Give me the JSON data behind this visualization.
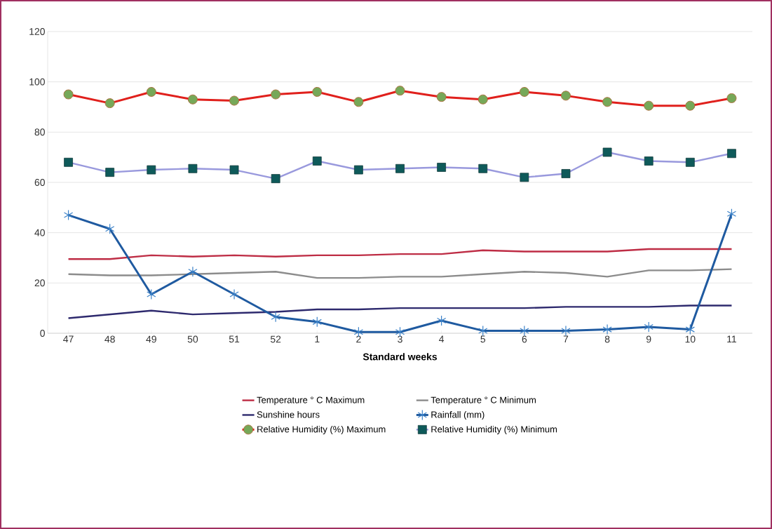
{
  "chart_data": {
    "type": "line",
    "xlabel": "Standard weeks",
    "categories": [
      "47",
      "48",
      "49",
      "50",
      "51",
      "52",
      "1",
      "2",
      "3",
      "4",
      "5",
      "6",
      "7",
      "8",
      "9",
      "10",
      "11"
    ],
    "ylim": [
      0,
      120
    ],
    "yticks": [
      0,
      20,
      40,
      60,
      80,
      100,
      120
    ],
    "grid": "y",
    "legend": "bottom",
    "series": [
      {
        "name": "Temperature ° C Maximum",
        "color": "#be2d45",
        "marker": "none",
        "values": [
          29.5,
          29.5,
          31,
          30.5,
          31,
          30.5,
          31,
          31,
          31.5,
          31.5,
          33,
          32.5,
          32.5,
          32.5,
          33.5,
          33.5,
          33.5
        ]
      },
      {
        "name": "Temperature ° C Minimum",
        "color": "#8c8c8c",
        "marker": "none",
        "values": [
          23.5,
          23,
          23,
          23.5,
          24,
          24.5,
          22,
          22,
          22.5,
          22.5,
          23.5,
          24.5,
          24,
          22.5,
          25,
          25,
          25.5
        ]
      },
      {
        "name": "Sunshine hours",
        "color": "#2e2a6e",
        "marker": "none",
        "values": [
          6,
          7.5,
          9,
          7.5,
          8,
          8.5,
          9.5,
          9.5,
          10,
          10,
          10,
          10,
          10.5,
          10.5,
          10.5,
          11,
          11
        ]
      },
      {
        "name": "Rainfall (mm)",
        "color": "#1f5aa0",
        "marker": "cross",
        "values": [
          47,
          41.5,
          15.5,
          24.5,
          15.5,
          6.5,
          4.5,
          0.5,
          0.5,
          5,
          1,
          1,
          1,
          1.5,
          2.5,
          1.5,
          47.5
        ]
      },
      {
        "name": "Relative Humidity (%) Maximum",
        "color": "#e0201c",
        "marker": "circle",
        "values": [
          95,
          91.5,
          96,
          93,
          92.5,
          95,
          96,
          92,
          96.5,
          94,
          93,
          96,
          94.5,
          92,
          90.5,
          90.5,
          93.5
        ]
      },
      {
        "name": "Relative Humidity (%) Minimum",
        "color": "#9999dd",
        "marker": "square",
        "values": [
          68,
          64,
          65,
          65.5,
          65,
          61.5,
          68.5,
          65,
          65.5,
          66,
          65.5,
          62,
          63.5,
          72,
          68.5,
          68,
          71.5
        ]
      }
    ]
  }
}
